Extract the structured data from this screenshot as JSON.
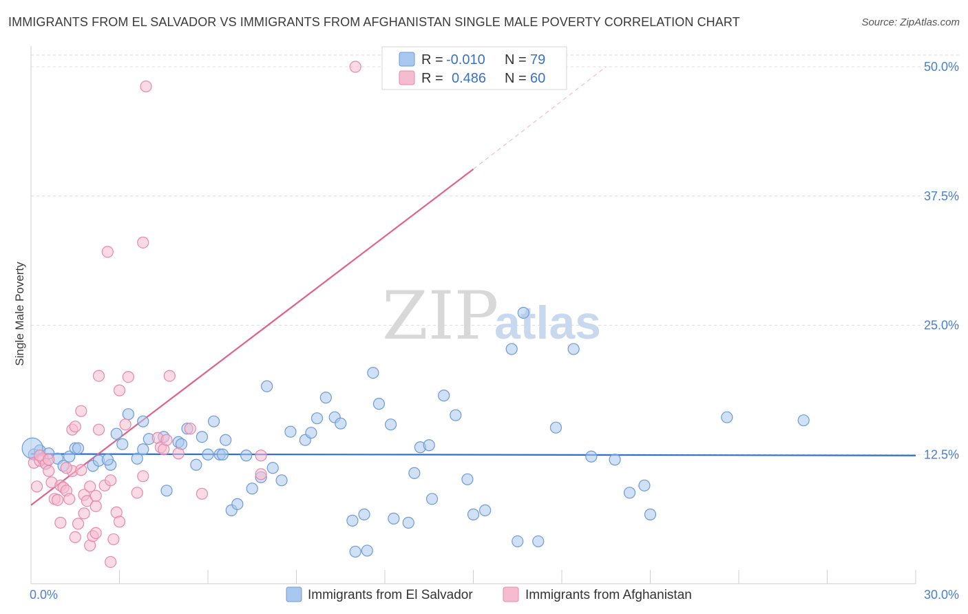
{
  "title": "IMMIGRANTS FROM EL SALVADOR VS IMMIGRANTS FROM AFGHANISTAN SINGLE MALE POVERTY CORRELATION CHART",
  "source": "Source: ZipAtlas.com",
  "watermark": {
    "zip": "ZIP",
    "atlas": "atlas"
  },
  "colors": {
    "blue_fill": "#a9c8ef",
    "blue_stroke": "#6b9ad8",
    "blue_line": "#2f6fcf",
    "pink_fill": "#f5bcd0",
    "pink_stroke": "#e987a8",
    "pink_line": "#e0628c",
    "grid": "#dcdcdc",
    "tick_text": "#4a7fcf"
  },
  "legend": {
    "rows": [
      {
        "r_label": "R =",
        "r_value": "-0.010",
        "n_label": "N =",
        "n_value": "79"
      },
      {
        "r_label": "R =",
        "r_value": "0.486",
        "n_label": "N =",
        "n_value": "60"
      }
    ]
  },
  "chart_data": {
    "type": "scatter",
    "xlabel": "",
    "ylabel": "Single Male Poverty",
    "xlim": [
      0,
      30
    ],
    "ylim": [
      0,
      50
    ],
    "x_tick_labels": [
      "0.0%",
      "30.0%"
    ],
    "y_tick_labels": [
      "12.5%",
      "25.0%",
      "37.5%",
      "50.0%"
    ],
    "y_ticks": [
      12.5,
      25.0,
      37.5,
      50.0
    ],
    "legend_position": "bottom",
    "series": [
      {
        "name": "Immigrants from El Salvador",
        "color": "blue",
        "R": -0.01,
        "N": 79,
        "trend": {
          "x1": 0.0,
          "y1": 12.55,
          "x2": 30.0,
          "y2": 12.4,
          "dashed_to": null
        },
        "points": [
          [
            0.1,
            12.5
          ],
          [
            0.3,
            12.9
          ],
          [
            0.5,
            11.6
          ],
          [
            0.6,
            12.6
          ],
          [
            0.9,
            12.1
          ],
          [
            1.1,
            11.4
          ],
          [
            1.3,
            12.3
          ],
          [
            1.5,
            13.1
          ],
          [
            1.6,
            13.1
          ],
          [
            2.1,
            11.4
          ],
          [
            2.3,
            11.9
          ],
          [
            2.7,
            11.5
          ],
          [
            2.9,
            14.5
          ],
          [
            3.1,
            13.5
          ],
          [
            3.3,
            16.4
          ],
          [
            3.6,
            12.1
          ],
          [
            3.8,
            15.7
          ],
          [
            3.8,
            13.0
          ],
          [
            4.0,
            14.0
          ],
          [
            4.5,
            14.2
          ],
          [
            4.6,
            9.0
          ],
          [
            5.0,
            13.7
          ],
          [
            5.1,
            13.5
          ],
          [
            5.3,
            15.0
          ],
          [
            5.6,
            11.5
          ],
          [
            5.8,
            14.2
          ],
          [
            6.0,
            12.5
          ],
          [
            6.2,
            15.7
          ],
          [
            6.4,
            12.5
          ],
          [
            6.6,
            13.9
          ],
          [
            6.8,
            7.1
          ],
          [
            7.0,
            7.7
          ],
          [
            7.3,
            12.4
          ],
          [
            7.5,
            9.2
          ],
          [
            7.8,
            10.3
          ],
          [
            8.0,
            19.1
          ],
          [
            8.2,
            11.2
          ],
          [
            8.5,
            10.0
          ],
          [
            8.8,
            14.7
          ],
          [
            9.3,
            13.9
          ],
          [
            9.5,
            14.6
          ],
          [
            9.7,
            16.0
          ],
          [
            10.0,
            18.0
          ],
          [
            10.3,
            16.1
          ],
          [
            10.5,
            15.5
          ],
          [
            10.9,
            6.1
          ],
          [
            11.0,
            3.1
          ],
          [
            11.3,
            6.7
          ],
          [
            11.4,
            3.2
          ],
          [
            11.6,
            20.4
          ],
          [
            11.8,
            17.4
          ],
          [
            12.2,
            15.4
          ],
          [
            12.3,
            6.3
          ],
          [
            12.8,
            5.9
          ],
          [
            13.0,
            10.7
          ],
          [
            13.2,
            13.2
          ],
          [
            13.5,
            13.4
          ],
          [
            13.6,
            8.2
          ],
          [
            14.0,
            18.2
          ],
          [
            14.4,
            16.3
          ],
          [
            14.8,
            10.1
          ],
          [
            15.0,
            6.7
          ],
          [
            15.4,
            7.1
          ],
          [
            16.3,
            22.7
          ],
          [
            16.5,
            4.1
          ],
          [
            16.7,
            26.2
          ],
          [
            17.2,
            4.1
          ],
          [
            17.8,
            15.1
          ],
          [
            18.4,
            22.7
          ],
          [
            19.0,
            12.3
          ],
          [
            19.8,
            12.0
          ],
          [
            20.3,
            8.8
          ],
          [
            20.8,
            9.5
          ],
          [
            21.0,
            6.7
          ],
          [
            23.6,
            16.1
          ],
          [
            26.2,
            15.8
          ],
          [
            0.05,
            13.1
          ],
          [
            2.6,
            12.0
          ],
          [
            6.5,
            12.5
          ]
        ]
      },
      {
        "name": "Immigrants from Afghanistan",
        "color": "pink",
        "R": 0.486,
        "N": 60,
        "trend": {
          "x1": 0.0,
          "y1": 7.6,
          "x2": 15.0,
          "y2": 40.1,
          "dashed_to": [
            19.5,
            50.0
          ]
        },
        "points": [
          [
            0.1,
            11.7
          ],
          [
            0.2,
            9.4
          ],
          [
            0.3,
            11.9
          ],
          [
            0.4,
            12.1
          ],
          [
            0.5,
            11.6
          ],
          [
            0.6,
            10.9
          ],
          [
            0.7,
            9.8
          ],
          [
            0.8,
            8.2
          ],
          [
            0.9,
            8.1
          ],
          [
            1.0,
            9.5
          ],
          [
            1.0,
            5.9
          ],
          [
            1.1,
            9.3
          ],
          [
            1.2,
            9.0
          ],
          [
            1.3,
            8.2
          ],
          [
            1.4,
            14.9
          ],
          [
            1.4,
            10.9
          ],
          [
            1.5,
            15.2
          ],
          [
            1.5,
            4.5
          ],
          [
            1.6,
            5.8
          ],
          [
            1.7,
            16.7
          ],
          [
            1.8,
            8.6
          ],
          [
            1.9,
            8.0
          ],
          [
            2.0,
            9.4
          ],
          [
            2.0,
            3.7
          ],
          [
            2.1,
            4.6
          ],
          [
            2.2,
            4.9
          ],
          [
            2.2,
            7.5
          ],
          [
            2.3,
            20.1
          ],
          [
            2.3,
            14.9
          ],
          [
            2.5,
            9.5
          ],
          [
            2.6,
            32.1
          ],
          [
            2.7,
            2.1
          ],
          [
            2.7,
            10.0
          ],
          [
            2.8,
            4.3
          ],
          [
            2.9,
            6.9
          ],
          [
            3.0,
            18.7
          ],
          [
            3.0,
            6.0
          ],
          [
            3.2,
            15.4
          ],
          [
            3.3,
            20.0
          ],
          [
            3.6,
            8.8
          ],
          [
            3.8,
            33.0
          ],
          [
            3.8,
            10.4
          ],
          [
            3.9,
            48.1
          ],
          [
            4.3,
            14.1
          ],
          [
            4.4,
            13.2
          ],
          [
            4.5,
            13.0
          ],
          [
            4.6,
            13.9
          ],
          [
            4.7,
            20.1
          ],
          [
            5.0,
            12.6
          ],
          [
            5.4,
            15.0
          ],
          [
            5.8,
            8.7
          ],
          [
            7.8,
            12.4
          ],
          [
            7.8,
            10.6
          ],
          [
            11.0,
            50.0
          ],
          [
            0.3,
            12.4
          ],
          [
            1.2,
            11.2
          ],
          [
            1.7,
            11.0
          ],
          [
            0.6,
            12.0
          ],
          [
            2.2,
            8.5
          ],
          [
            1.8,
            6.8
          ]
        ]
      }
    ]
  },
  "bottom_legend": [
    {
      "label": "Immigrants from El Salvador"
    },
    {
      "label": "Immigrants from Afghanistan"
    }
  ]
}
